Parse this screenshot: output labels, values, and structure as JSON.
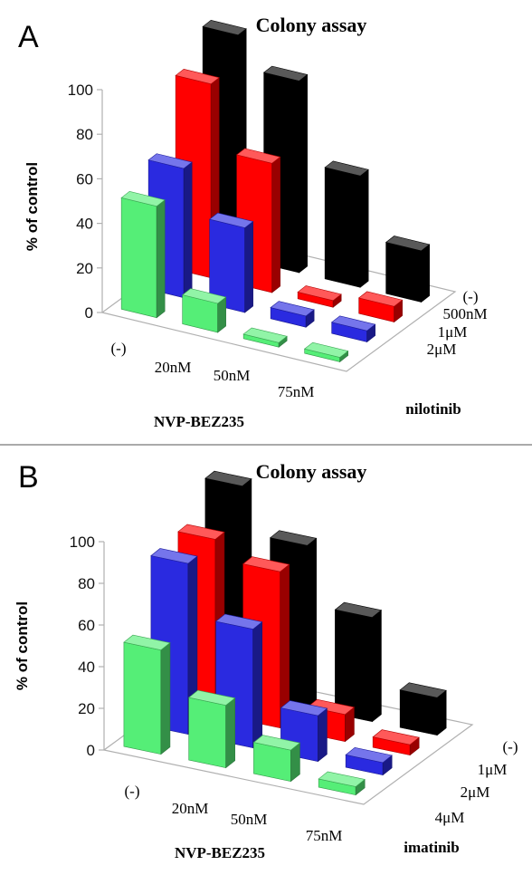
{
  "chart_data": [
    {
      "panel": "A",
      "type": "bar",
      "title": "Colony assay",
      "ylabel": "% of control",
      "xlabel": "NVP-BEZ235",
      "zlabel": "nilotinib",
      "yticks": [
        "0",
        "20",
        "40",
        "60",
        "80",
        "100"
      ],
      "ylim": [
        0,
        100
      ],
      "categories": [
        "(-)",
        "20nM",
        "50nM",
        "75nM"
      ],
      "series": [
        {
          "name": "(-)",
          "color": "#000000",
          "values": [
            100,
            86,
            50,
            23
          ]
        },
        {
          "name": "500nM",
          "color": "#ff0000",
          "values": [
            87,
            58,
            3,
            7
          ]
        },
        {
          "name": "1μM",
          "color": "#2a2ae0",
          "values": [
            58,
            38,
            5,
            5
          ]
        },
        {
          "name": "2μM",
          "color": "#55ee77",
          "values": [
            50,
            13,
            2,
            2
          ]
        }
      ]
    },
    {
      "panel": "B",
      "type": "bar",
      "title": "Colony assay",
      "ylabel": "% of control",
      "xlabel": "NVP-BEZ235",
      "zlabel": "imatinib",
      "yticks": [
        "0",
        "20",
        "40",
        "60",
        "80",
        "100"
      ],
      "ylim": [
        0,
        100
      ],
      "categories": [
        "(-)",
        "20nM",
        "50nM",
        "75nM"
      ],
      "series": [
        {
          "name": "(-)",
          "color": "#000000",
          "values": [
            100,
            78,
            50,
            18
          ]
        },
        {
          "name": "1μM",
          "color": "#ff0000",
          "values": [
            84,
            75,
            13,
            5
          ]
        },
        {
          "name": "2μM",
          "color": "#2a2ae0",
          "values": [
            82,
            57,
            22,
            6
          ]
        },
        {
          "name": "4μM",
          "color": "#55ee77",
          "values": [
            50,
            30,
            15,
            4
          ]
        }
      ]
    }
  ]
}
